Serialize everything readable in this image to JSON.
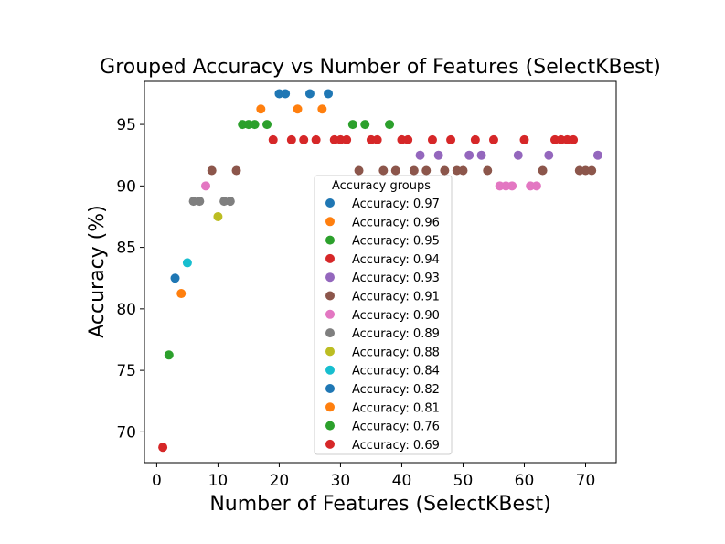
{
  "chart_data": {
    "type": "scatter",
    "title": "Grouped Accuracy vs Number of Features (SelectKBest)",
    "xlabel": "Number of Features (SelectKBest)",
    "ylabel": "Accuracy (%)",
    "xlim": [
      -2,
      75
    ],
    "ylim": [
      67.5,
      98.5
    ],
    "x_ticks": [
      "0",
      "10",
      "20",
      "30",
      "40",
      "50",
      "60",
      "70"
    ],
    "y_ticks": [
      "70",
      "75",
      "80",
      "85",
      "90",
      "95"
    ],
    "grid": false,
    "legend": {
      "title": "Accuracy groups",
      "placement": "center"
    },
    "series": [
      {
        "name": "Accuracy: 0.97",
        "color": "#1f77b4",
        "x": [
          20,
          21,
          25,
          28
        ],
        "y": [
          97.5,
          97.5,
          97.5,
          97.5
        ]
      },
      {
        "name": "Accuracy: 0.96",
        "color": "#ff7f0e",
        "x": [
          17,
          23,
          27
        ],
        "y": [
          96.25,
          96.25,
          96.25
        ]
      },
      {
        "name": "Accuracy: 0.95",
        "color": "#2ca02c",
        "x": [
          14,
          15,
          16,
          18,
          32,
          34,
          38
        ],
        "y": [
          95,
          95,
          95,
          95,
          95,
          95,
          95
        ]
      },
      {
        "name": "Accuracy: 0.94",
        "color": "#d62728",
        "x": [
          19,
          22,
          24,
          26,
          29,
          30,
          31,
          35,
          36,
          40,
          41,
          45,
          48,
          52,
          55,
          60,
          65,
          66,
          67,
          68
        ],
        "y": [
          93.75,
          93.75,
          93.75,
          93.75,
          93.75,
          93.75,
          93.75,
          93.75,
          93.75,
          93.75,
          93.75,
          93.75,
          93.75,
          93.75,
          93.75,
          93.75,
          93.75,
          93.75,
          93.75,
          93.75
        ]
      },
      {
        "name": "Accuracy: 0.93",
        "color": "#9467bd",
        "x": [
          43,
          46,
          51,
          53,
          59,
          64,
          72
        ],
        "y": [
          92.5,
          92.5,
          92.5,
          92.5,
          92.5,
          92.5,
          92.5
        ]
      },
      {
        "name": "Accuracy: 0.91",
        "color": "#8c564b",
        "x": [
          9,
          13,
          33,
          37,
          39,
          42,
          44,
          47,
          49,
          50,
          54,
          63,
          69,
          70,
          71
        ],
        "y": [
          91.25,
          91.25,
          91.25,
          91.25,
          91.25,
          91.25,
          91.25,
          91.25,
          91.25,
          91.25,
          91.25,
          91.25,
          91.25,
          91.25,
          91.25
        ]
      },
      {
        "name": "Accuracy: 0.90",
        "color": "#e377c2",
        "x": [
          8,
          56,
          57,
          58,
          61,
          62
        ],
        "y": [
          90,
          90,
          90,
          90,
          90,
          90
        ]
      },
      {
        "name": "Accuracy: 0.89",
        "color": "#7f7f7f",
        "x": [
          6,
          7,
          11,
          12
        ],
        "y": [
          88.75,
          88.75,
          88.75,
          88.75
        ]
      },
      {
        "name": "Accuracy: 0.88",
        "color": "#bcbd22",
        "x": [
          10
        ],
        "y": [
          87.5
        ]
      },
      {
        "name": "Accuracy: 0.84",
        "color": "#17becf",
        "x": [
          5
        ],
        "y": [
          83.75
        ]
      },
      {
        "name": "Accuracy: 0.82",
        "color": "#1f77b4",
        "x": [
          3
        ],
        "y": [
          82.5
        ]
      },
      {
        "name": "Accuracy: 0.81",
        "color": "#ff7f0e",
        "x": [
          4
        ],
        "y": [
          81.25
        ]
      },
      {
        "name": "Accuracy: 0.76",
        "color": "#2ca02c",
        "x": [
          2
        ],
        "y": [
          76.25
        ]
      },
      {
        "name": "Accuracy: 0.69",
        "color": "#d62728",
        "x": [
          1
        ],
        "y": [
          68.75
        ]
      }
    ]
  }
}
